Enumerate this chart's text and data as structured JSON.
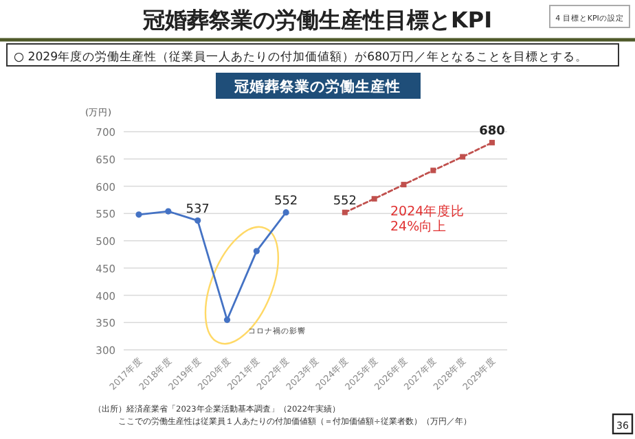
{
  "chart_data": {
    "type": "line",
    "title": "冠婚葬祭業の労働生産性目標とKPI",
    "subtitle": "○ 2029年度の労働生産性（従業員一人あたりの付加価値額）が680万円／年となることを目標とする。",
    "ylabel": "(万円)",
    "categories": [
      "2017年度",
      "2018年度",
      "2019年度",
      "2020年度",
      "2021年度",
      "2022年度",
      "2023年度",
      "2024年度",
      "2025年度",
      "2026年度",
      "2027年度",
      "2028年度",
      "2029年度"
    ],
    "series": [
      {
        "color": "#4472c4",
        "marker": "circle",
        "line_style": "solid",
        "values": [
          548,
          554,
          537,
          355,
          481,
          552,
          null,
          null,
          null,
          null,
          null,
          null,
          null
        ],
        "value_labels": [
          null,
          null,
          "537",
          null,
          null,
          "552",
          null,
          null,
          null,
          null,
          null,
          null,
          null
        ]
      },
      {
        "color": "#c0504d",
        "marker": "square",
        "line_style": "dashed",
        "values": [
          null,
          null,
          null,
          null,
          null,
          null,
          null,
          552,
          577,
          603,
          629,
          654,
          680
        ],
        "value_labels": [
          null,
          null,
          null,
          null,
          null,
          null,
          null,
          "552",
          null,
          null,
          null,
          null,
          "680"
        ]
      }
    ],
    "ylim": [
      300,
      700
    ],
    "yticks": [
      300,
      350,
      400,
      450,
      500,
      550,
      600,
      650,
      700
    ],
    "grid": "y",
    "annotations": [
      "4 目標とKPIの設定",
      "36",
      "冠婚葬祭業の労働生産性",
      "コロナ禍の影響",
      "2024年度比\n24%向上",
      "（出所）経済産業省「2023年企業活動基本調査」（2022年実績）",
      "ここでの労働生産性は従業員１人あたりの付加価値額（＝付加価値額÷従業者数）（万円／年）"
    ]
  }
}
